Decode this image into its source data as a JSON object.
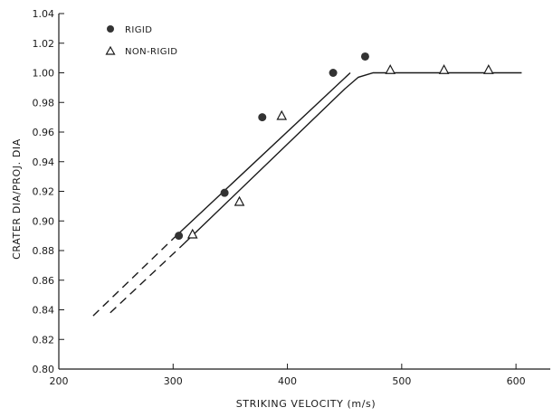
{
  "chart_data": {
    "type": "scatter",
    "title": "",
    "xlabel": "STRIKING VELOCITY (m/s)",
    "ylabel": "CRATER DIA/PROJ. DIA",
    "xlim": [
      200,
      630
    ],
    "ylim": [
      0.8,
      1.04
    ],
    "x_ticks": [
      200,
      300,
      400,
      500,
      600
    ],
    "y_ticks": [
      0.8,
      0.82,
      0.84,
      0.86,
      0.88,
      0.9,
      0.92,
      0.94,
      0.96,
      0.98,
      1.0,
      1.02,
      1.04
    ],
    "grid": false,
    "legend_position": "top-left",
    "series": [
      {
        "name": "RIGID",
        "marker": "filled-circle",
        "points": [
          {
            "x": 305,
            "y": 0.89
          },
          {
            "x": 345,
            "y": 0.919
          },
          {
            "x": 378,
            "y": 0.97
          },
          {
            "x": 440,
            "y": 1.0
          },
          {
            "x": 468,
            "y": 1.011
          }
        ]
      },
      {
        "name": "NON-RIGID",
        "marker": "open-triangle",
        "points": [
          {
            "x": 317,
            "y": 0.891
          },
          {
            "x": 358,
            "y": 0.913
          },
          {
            "x": 395,
            "y": 0.971
          },
          {
            "x": 490,
            "y": 1.002
          },
          {
            "x": 537,
            "y": 1.002
          },
          {
            "x": 576,
            "y": 1.002
          }
        ]
      }
    ],
    "fit_lines": [
      {
        "series": "RIGID",
        "solid": [
          [
            300,
            0.888
          ],
          [
            455,
            1.0
          ]
        ],
        "dashed": [
          [
            230,
            0.836
          ],
          [
            300,
            0.888
          ]
        ]
      },
      {
        "series": "NON-RIGID",
        "solid": [
          [
            310,
            0.885
          ],
          [
            450,
            0.989
          ],
          [
            462,
            0.997
          ],
          [
            475,
            1.0
          ],
          [
            605,
            1.0
          ]
        ],
        "dashed": [
          [
            245,
            0.838
          ],
          [
            310,
            0.885
          ]
        ]
      }
    ],
    "colors": {
      "ink": "#1a1a1a",
      "rigid_marker": "#333333"
    }
  }
}
